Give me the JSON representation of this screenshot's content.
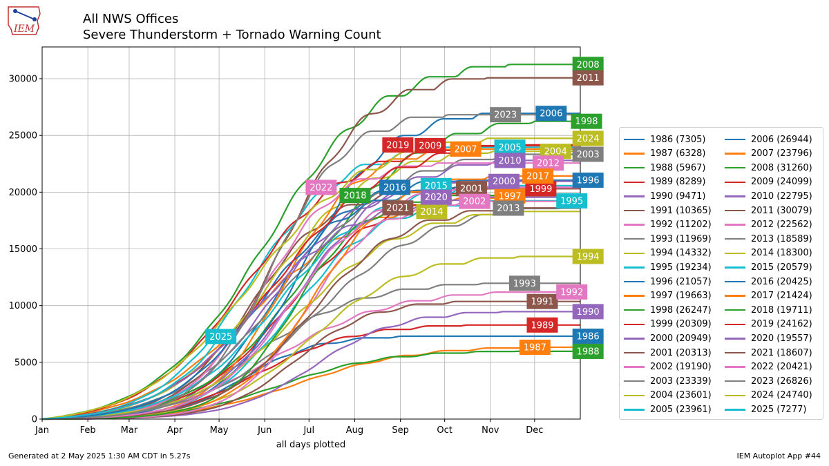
{
  "header": {
    "logo_text": "IEM",
    "title_line1": "All NWS Offices",
    "title_line2": "Severe Thunderstorm + Tornado Warning Count"
  },
  "footer": {
    "generated": "Generated at 2 May 2025 1:30 AM CDT in 5.27s",
    "app": "IEM Autoplot App #44"
  },
  "chart_data": {
    "type": "line",
    "title": "All NWS Offices Severe Thunderstorm + Tornado Warning Count",
    "xlabel": "all days plotted",
    "ylabel": "",
    "xlim": [
      1,
      366
    ],
    "ylim": [
      0,
      32800
    ],
    "grid": true,
    "legend_placement": "right",
    "x_ticks": [
      {
        "label": "Jan",
        "day": 1
      },
      {
        "label": "Feb",
        "day": 32
      },
      {
        "label": "Mar",
        "day": 60
      },
      {
        "label": "Apr",
        "day": 91
      },
      {
        "label": "May",
        "day": 121
      },
      {
        "label": "Jun",
        "day": 152
      },
      {
        "label": "Jul",
        "day": 182
      },
      {
        "label": "Aug",
        "day": 213
      },
      {
        "label": "Sep",
        "day": 244
      },
      {
        "label": "Oct",
        "day": 274
      },
      {
        "label": "Nov",
        "day": 305
      },
      {
        "label": "Dec",
        "day": 335
      }
    ],
    "y_ticks": [
      0,
      5000,
      10000,
      15000,
      20000,
      25000,
      30000
    ],
    "series": [
      {
        "name": "1986 (7305)",
        "year": "1986",
        "total": 7305,
        "color": "#1f77b4",
        "label_day": 371
      },
      {
        "name": "1987 (6328)",
        "year": "1987",
        "total": 6328,
        "color": "#ff7f0e",
        "label_day": 335
      },
      {
        "name": "1988 (5967)",
        "year": "1988",
        "total": 5967,
        "color": "#2ca02c",
        "label_day": 371
      },
      {
        "name": "1989 (8289)",
        "year": "1989",
        "total": 8289,
        "color": "#d62728",
        "label_day": 340
      },
      {
        "name": "1990 (9471)",
        "year": "1990",
        "total": 9471,
        "color": "#9467bd",
        "label_day": 371
      },
      {
        "name": "1991 (10365)",
        "year": "1991",
        "total": 10365,
        "color": "#8c564b",
        "label_day": 340
      },
      {
        "name": "1992 (11202)",
        "year": "1992",
        "total": 11202,
        "color": "#e377c2",
        "label_day": 360
      },
      {
        "name": "1993 (11969)",
        "year": "1993",
        "total": 11969,
        "color": "#7f7f7f",
        "label_day": 328
      },
      {
        "name": "1994 (14332)",
        "year": "1994",
        "total": 14332,
        "color": "#bcbd22",
        "label_day": 371
      },
      {
        "name": "1995 (19234)",
        "year": "1995",
        "total": 19234,
        "color": "#17becf",
        "label_day": 360
      },
      {
        "name": "1996 (21057)",
        "year": "1996",
        "total": 21057,
        "color": "#1f77b4",
        "label_day": 371
      },
      {
        "name": "1997 (19663)",
        "year": "1997",
        "total": 19663,
        "color": "#ff7f0e",
        "label_day": 318
      },
      {
        "name": "1998 (26247)",
        "year": "1998",
        "total": 26247,
        "color": "#2ca02c",
        "label_day": 370
      },
      {
        "name": "1999 (20309)",
        "year": "1999",
        "total": 20309,
        "color": "#d62728",
        "label_day": 339
      },
      {
        "name": "2000 (20949)",
        "year": "2000",
        "total": 20949,
        "color": "#9467bd",
        "label_day": 314
      },
      {
        "name": "2001 (20313)",
        "year": "2001",
        "total": 20313,
        "color": "#8c564b",
        "label_day": 292
      },
      {
        "name": "2002 (19190)",
        "year": "2002",
        "total": 19190,
        "color": "#e377c2",
        "label_day": 294
      },
      {
        "name": "2003 (23339)",
        "year": "2003",
        "total": 23339,
        "color": "#7f7f7f",
        "label_day": 371
      },
      {
        "name": "2004 (23601)",
        "year": "2004",
        "total": 23601,
        "color": "#bcbd22",
        "label_day": 349
      },
      {
        "name": "2005 (23961)",
        "year": "2005",
        "total": 23961,
        "color": "#17becf",
        "label_day": 318
      },
      {
        "name": "2006 (26944)",
        "year": "2006",
        "total": 26944,
        "color": "#1f77b4",
        "label_day": 346
      },
      {
        "name": "2007 (23796)",
        "year": "2007",
        "total": 23796,
        "color": "#ff7f0e",
        "label_day": 288
      },
      {
        "name": "2008 (31260)",
        "year": "2008",
        "total": 31260,
        "color": "#2ca02c",
        "label_day": 371
      },
      {
        "name": "2009 (24099)",
        "year": "2009",
        "total": 24099,
        "color": "#d62728",
        "label_day": 264
      },
      {
        "name": "2010 (22795)",
        "year": "2010",
        "total": 22795,
        "color": "#9467bd",
        "label_day": 318
      },
      {
        "name": "2011 (30079)",
        "year": "2011",
        "total": 30079,
        "color": "#8c564b",
        "label_day": 371
      },
      {
        "name": "2012 (22562)",
        "year": "2012",
        "total": 22562,
        "color": "#e377c2",
        "label_day": 344
      },
      {
        "name": "2013 (18589)",
        "year": "2013",
        "total": 18589,
        "color": "#7f7f7f",
        "label_day": 317
      },
      {
        "name": "2014 (18300)",
        "year": "2014",
        "total": 18300,
        "color": "#bcbd22",
        "label_day": 265
      },
      {
        "name": "2015 (20579)",
        "year": "2015",
        "total": 20579,
        "color": "#17becf",
        "label_day": 268
      },
      {
        "name": "2016 (20425)",
        "year": "2016",
        "total": 20425,
        "color": "#1f77b4",
        "label_day": 240
      },
      {
        "name": "2017 (21424)",
        "year": "2017",
        "total": 21424,
        "color": "#ff7f0e",
        "label_day": 337
      },
      {
        "name": "2018 (19711)",
        "year": "2018",
        "total": 19711,
        "color": "#2ca02c",
        "label_day": 213
      },
      {
        "name": "2019 (24162)",
        "year": "2019",
        "total": 24162,
        "color": "#d62728",
        "label_day": 242
      },
      {
        "name": "2020 (19557)",
        "year": "2020",
        "total": 19557,
        "color": "#9467bd",
        "label_day": 268
      },
      {
        "name": "2021 (18607)",
        "year": "2021",
        "total": 18607,
        "color": "#8c564b",
        "label_day": 242
      },
      {
        "name": "2022 (20421)",
        "year": "2022",
        "total": 20421,
        "color": "#e377c2",
        "label_day": 190
      },
      {
        "name": "2023 (26826)",
        "year": "2023",
        "total": 26826,
        "color": "#7f7f7f",
        "label_day": 315
      },
      {
        "name": "2024 (24740)",
        "year": "2024",
        "total": 24740,
        "color": "#bcbd22",
        "label_day": 371
      },
      {
        "name": "2025 (7277)",
        "year": "2025",
        "total": 7277,
        "color": "#17becf",
        "label_day": 122
      }
    ]
  }
}
